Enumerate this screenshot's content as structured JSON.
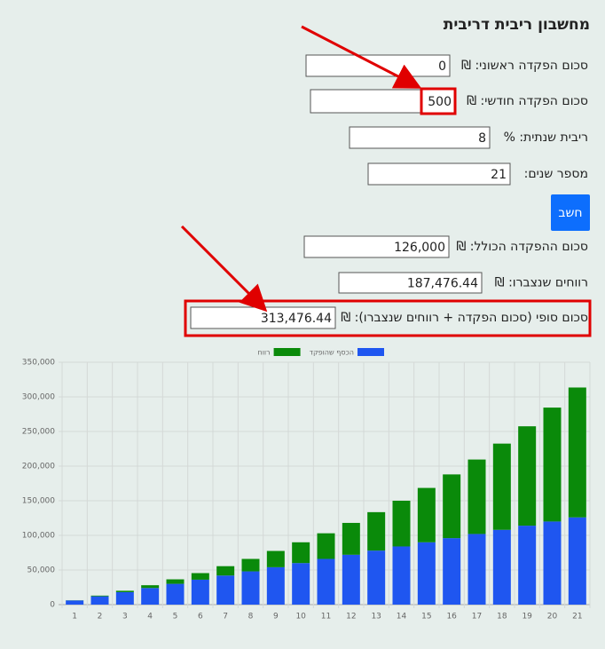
{
  "title": "מחשבון ריבית דריבית",
  "inputs": [
    {
      "label": "סכום הפקדה ראשוני: ₪",
      "value": "0"
    },
    {
      "label": "סכום הפקדה חודשי: ₪",
      "value": "500"
    },
    {
      "label": "ריבית שנתית: %",
      "value": "8"
    },
    {
      "label": "מספר שנים:",
      "value": "21"
    }
  ],
  "button": "חשב",
  "results": [
    {
      "label": "סכום ההפקדה הכולל: ₪",
      "value": "126,000"
    },
    {
      "label": "רווחים שנצברו: ₪",
      "value": "187,476.44"
    },
    {
      "label": "סכום סופי (סכום הפקדה + רווחים שנצברו): ₪",
      "value": "313,476.44"
    }
  ],
  "chart_data": {
    "type": "bar",
    "stacked": true,
    "categories": [
      "1",
      "2",
      "3",
      "4",
      "5",
      "6",
      "7",
      "8",
      "9",
      "10",
      "11",
      "12",
      "13",
      "14",
      "15",
      "16",
      "17",
      "18",
      "19",
      "20",
      "21"
    ],
    "series": [
      {
        "name": "הכסף שהופקד",
        "color": "#1f56f0",
        "values": [
          6000,
          12000,
          18000,
          24000,
          30000,
          36000,
          42000,
          48000,
          54000,
          60000,
          66000,
          72000,
          78000,
          84000,
          90000,
          96000,
          102000,
          108000,
          114000,
          120000,
          126000
        ]
      },
      {
        "name": "רווח",
        "color": "#0a8a0a",
        "values": [
          200,
          1000,
          2000,
          4000,
          6500,
          9500,
          13500,
          18000,
          23500,
          30000,
          37000,
          46000,
          55500,
          66000,
          78500,
          92000,
          107500,
          124500,
          143500,
          164500,
          187500
        ]
      }
    ],
    "ylim": [
      0,
      350000
    ],
    "yticks": [
      0,
      {
        "value": 50000,
        "label": "50,000"
      },
      {
        "value": 100000,
        "label": "100,000"
      },
      {
        "value": 150000,
        "label": "150,000"
      },
      {
        "value": 200000,
        "label": "200,000"
      },
      {
        "value": 250000,
        "label": "250,000"
      },
      {
        "value": 300000,
        "label": "300,000"
      },
      {
        "value": 350000,
        "label": "350,000"
      }
    ],
    "grid": true,
    "legend": "top"
  }
}
